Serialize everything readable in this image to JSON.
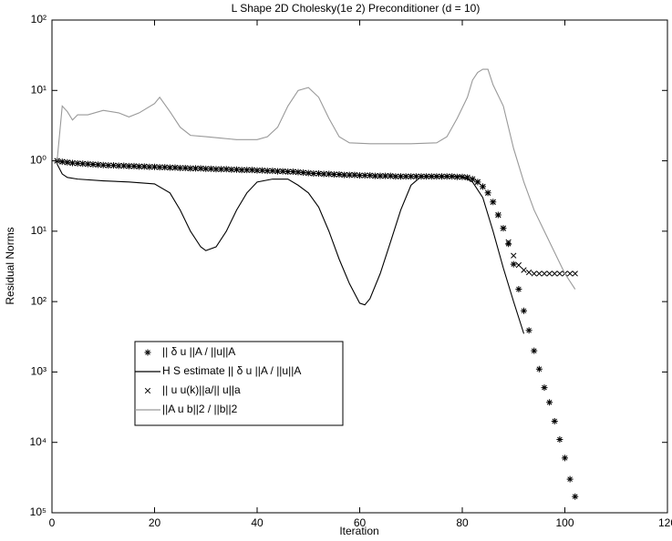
{
  "chart_data": {
    "type": "line",
    "title": "L Shape 2D    Cholesky(1e 2) Preconditioner (d = 10)",
    "xlabel": "Iteration",
    "ylabel": "Residual Norms",
    "xlim": [
      0,
      120
    ],
    "xticks": [
      0,
      20,
      40,
      60,
      80,
      100,
      120
    ],
    "ylim": [
      1e-05,
      100
    ],
    "log_y": true,
    "yticks": [
      {
        "value": 100,
        "label": "10²"
      },
      {
        "value": 10,
        "label": "10¹"
      },
      {
        "value": 1,
        "label": "10⁰"
      },
      {
        "value": 0.1,
        "label": "10¹"
      },
      {
        "value": 0.01,
        "label": "10²"
      },
      {
        "value": 0.001,
        "label": "10³"
      },
      {
        "value": 0.0001,
        "label": "10⁴"
      },
      {
        "value": 1e-05,
        "label": "10⁵"
      }
    ],
    "grid": false,
    "series": [
      {
        "name": "|| δ u ||A / ||u||A",
        "color": "#000000",
        "marker": "star",
        "x": [
          1,
          2,
          3,
          4,
          5,
          6,
          7,
          8,
          9,
          10,
          11,
          12,
          13,
          14,
          15,
          16,
          17,
          18,
          19,
          20,
          21,
          22,
          23,
          24,
          25,
          26,
          27,
          28,
          29,
          30,
          31,
          32,
          33,
          34,
          35,
          36,
          37,
          38,
          39,
          40,
          41,
          42,
          43,
          44,
          45,
          46,
          47,
          48,
          49,
          50,
          51,
          52,
          53,
          54,
          55,
          56,
          57,
          58,
          59,
          60,
          61,
          62,
          63,
          64,
          65,
          66,
          67,
          68,
          69,
          70,
          71,
          72,
          73,
          74,
          75,
          76,
          77,
          78,
          79,
          80,
          81,
          82,
          83,
          84,
          85,
          86,
          87,
          88,
          89,
          90,
          91,
          92,
          93,
          94,
          95,
          96,
          97,
          98,
          99,
          100,
          101,
          102
        ],
        "values": [
          1.0,
          0.97,
          0.95,
          0.93,
          0.92,
          0.91,
          0.9,
          0.89,
          0.88,
          0.87,
          0.86,
          0.86,
          0.85,
          0.85,
          0.84,
          0.84,
          0.83,
          0.83,
          0.82,
          0.82,
          0.81,
          0.81,
          0.8,
          0.8,
          0.79,
          0.79,
          0.78,
          0.78,
          0.78,
          0.77,
          0.77,
          0.76,
          0.76,
          0.76,
          0.75,
          0.75,
          0.74,
          0.74,
          0.74,
          0.73,
          0.73,
          0.72,
          0.72,
          0.71,
          0.71,
          0.7,
          0.7,
          0.69,
          0.68,
          0.67,
          0.66,
          0.66,
          0.65,
          0.65,
          0.64,
          0.64,
          0.63,
          0.63,
          0.63,
          0.62,
          0.62,
          0.62,
          0.61,
          0.61,
          0.61,
          0.61,
          0.6,
          0.6,
          0.6,
          0.6,
          0.6,
          0.6,
          0.6,
          0.6,
          0.6,
          0.6,
          0.6,
          0.6,
          0.59,
          0.59,
          0.58,
          0.55,
          0.5,
          0.43,
          0.35,
          0.26,
          0.17,
          0.11,
          0.066,
          0.034,
          0.015,
          0.0074,
          0.0039,
          0.002,
          0.0011,
          0.0006,
          0.00037,
          0.0002,
          0.00011,
          6e-05,
          3e-05,
          1.7e-05
        ]
      },
      {
        "name": "H  S estimate || δ u ||A / ||u||A",
        "color": "#000000",
        "marker": "line",
        "x": [
          1,
          2,
          3,
          5,
          10,
          15,
          20,
          23,
          25,
          27,
          29,
          30,
          32,
          34,
          36,
          38,
          40,
          43,
          46,
          48,
          50,
          52,
          54,
          56,
          58,
          60,
          61,
          62,
          64,
          66,
          68,
          70,
          72,
          80,
          82,
          84,
          86,
          88,
          90,
          92
        ],
        "values": [
          0.9,
          0.65,
          0.58,
          0.55,
          0.52,
          0.5,
          0.47,
          0.35,
          0.2,
          0.1,
          0.06,
          0.053,
          0.06,
          0.1,
          0.2,
          0.35,
          0.5,
          0.55,
          0.55,
          0.45,
          0.35,
          0.22,
          0.1,
          0.04,
          0.018,
          0.0095,
          0.009,
          0.011,
          0.025,
          0.07,
          0.2,
          0.45,
          0.6,
          0.6,
          0.5,
          0.3,
          0.1,
          0.03,
          0.01,
          0.0035
        ]
      },
      {
        "name": "|| u    u(k)||a/|| u||a",
        "color": "#000000",
        "marker": "x",
        "x": [
          1,
          2,
          3,
          4,
          5,
          6,
          7,
          8,
          9,
          10,
          11,
          12,
          13,
          14,
          15,
          16,
          17,
          18,
          19,
          20,
          21,
          22,
          23,
          24,
          25,
          26,
          27,
          28,
          29,
          30,
          31,
          32,
          33,
          34,
          35,
          36,
          37,
          38,
          39,
          40,
          41,
          42,
          43,
          44,
          45,
          46,
          47,
          48,
          49,
          50,
          51,
          52,
          53,
          54,
          55,
          56,
          57,
          58,
          59,
          60,
          61,
          62,
          63,
          64,
          65,
          66,
          67,
          68,
          69,
          70,
          71,
          72,
          73,
          74,
          75,
          76,
          77,
          78,
          79,
          80,
          81,
          82,
          83,
          84,
          85,
          86,
          87,
          88,
          89,
          90,
          91,
          92,
          93,
          94,
          95,
          96,
          97,
          98,
          99,
          100,
          101,
          102
        ],
        "values": [
          1.0,
          0.97,
          0.95,
          0.93,
          0.92,
          0.91,
          0.9,
          0.89,
          0.88,
          0.87,
          0.86,
          0.86,
          0.85,
          0.85,
          0.84,
          0.84,
          0.83,
          0.83,
          0.82,
          0.82,
          0.81,
          0.81,
          0.8,
          0.8,
          0.79,
          0.79,
          0.78,
          0.78,
          0.78,
          0.77,
          0.77,
          0.76,
          0.76,
          0.76,
          0.75,
          0.75,
          0.74,
          0.74,
          0.74,
          0.73,
          0.73,
          0.72,
          0.72,
          0.71,
          0.71,
          0.7,
          0.7,
          0.69,
          0.68,
          0.67,
          0.66,
          0.66,
          0.65,
          0.65,
          0.64,
          0.64,
          0.63,
          0.63,
          0.63,
          0.62,
          0.62,
          0.62,
          0.61,
          0.61,
          0.61,
          0.61,
          0.6,
          0.6,
          0.6,
          0.6,
          0.6,
          0.6,
          0.6,
          0.6,
          0.6,
          0.6,
          0.6,
          0.6,
          0.59,
          0.59,
          0.58,
          0.55,
          0.5,
          0.43,
          0.35,
          0.26,
          0.17,
          0.11,
          0.07,
          0.045,
          0.033,
          0.028,
          0.026,
          0.025,
          0.025,
          0.025,
          0.025,
          0.025,
          0.025,
          0.025,
          0.025,
          0.025
        ]
      },
      {
        "name": "||A u    b||2 / ||b||2",
        "color": "#999999",
        "marker": "line",
        "x": [
          1,
          2,
          3,
          4,
          5,
          7,
          10,
          13,
          15,
          17,
          20,
          21,
          23,
          25,
          27,
          30,
          33,
          36,
          40,
          42,
          44,
          46,
          48,
          50,
          52,
          54,
          56,
          58,
          62,
          70,
          75,
          77,
          79,
          81,
          82,
          83,
          84,
          85,
          86,
          88,
          90,
          92,
          94,
          96,
          98,
          100,
          102
        ],
        "values": [
          1.0,
          6,
          5,
          3.8,
          4.5,
          4.5,
          5.2,
          4.8,
          4.2,
          4.8,
          6.5,
          8,
          5,
          3.0,
          2.3,
          2.2,
          2.1,
          2.0,
          2.0,
          2.2,
          3,
          6,
          10,
          11,
          8,
          4,
          2.2,
          1.8,
          1.75,
          1.75,
          1.8,
          2.2,
          4,
          8,
          14,
          18,
          20,
          20,
          12,
          6,
          1.5,
          0.5,
          0.2,
          0.1,
          0.05,
          0.025,
          0.015
        ]
      }
    ]
  }
}
